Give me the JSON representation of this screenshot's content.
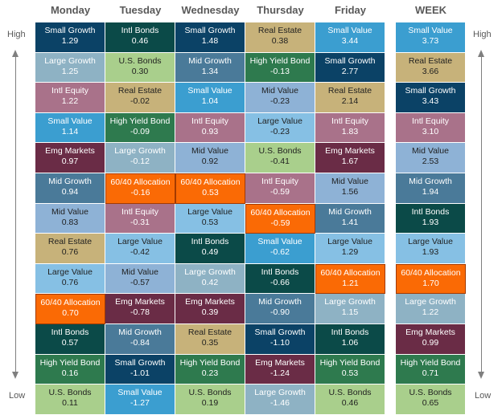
{
  "chart_data": {
    "type": "table",
    "axis_labels": {
      "top": "High",
      "bottom": "Low"
    },
    "colors": {
      "Small Growth": "#0b4266",
      "Intl Bonds": "#0b4a48",
      "Real Estate": "#c7b27a",
      "Small Value": "#3b9ed0",
      "Large Growth": "#8eb2c4",
      "U.S. Bonds": "#a9cf8c",
      "Mid Growth": "#4a7a99",
      "High Yield Bond": "#2e7a4e",
      "Intl Equity": "#a9728a",
      "Mid Value": "#8eb2d6",
      "Emg Markets": "#6a2c46",
      "Large Value": "#86c0e4",
      "60/40 Allocation": "#fa6a05"
    },
    "columns": [
      {
        "header": "Monday",
        "rows": [
          {
            "name": "Small Growth",
            "value": "1.29"
          },
          {
            "name": "Large Growth",
            "value": "1.25"
          },
          {
            "name": "Intl Equity",
            "value": "1.22"
          },
          {
            "name": "Small Value",
            "value": "1.14"
          },
          {
            "name": "Emg Markets",
            "value": "0.97"
          },
          {
            "name": "Mid Growth",
            "value": "0.94"
          },
          {
            "name": "Mid Value",
            "value": "0.83"
          },
          {
            "name": "Real Estate",
            "value": "0.76"
          },
          {
            "name": "Large Value",
            "value": "0.76"
          },
          {
            "name": "60/40 Allocation",
            "value": "0.70"
          },
          {
            "name": "Intl Bonds",
            "value": "0.57"
          },
          {
            "name": "High Yield Bond",
            "value": "0.16"
          },
          {
            "name": "U.S. Bonds",
            "value": "0.11"
          }
        ]
      },
      {
        "header": "Tuesday",
        "rows": [
          {
            "name": "Intl Bonds",
            "value": "0.46"
          },
          {
            "name": "U.S. Bonds",
            "value": "0.30"
          },
          {
            "name": "Real Estate",
            "value": "-0.02"
          },
          {
            "name": "High Yield Bond",
            "value": "-0.09"
          },
          {
            "name": "Large Growth",
            "value": "-0.12"
          },
          {
            "name": "60/40 Allocation",
            "value": "-0.16"
          },
          {
            "name": "Intl Equity",
            "value": "-0.31"
          },
          {
            "name": "Large Value",
            "value": "-0.42"
          },
          {
            "name": "Mid Value",
            "value": "-0.57"
          },
          {
            "name": "Emg Markets",
            "value": "-0.78"
          },
          {
            "name": "Mid Growth",
            "value": "-0.84"
          },
          {
            "name": "Small Growth",
            "value": "-1.01"
          },
          {
            "name": "Small Value",
            "value": "-1.27"
          }
        ]
      },
      {
        "header": "Wednesday",
        "rows": [
          {
            "name": "Small Growth",
            "value": "1.48"
          },
          {
            "name": "Mid Growth",
            "value": "1.34"
          },
          {
            "name": "Small Value",
            "value": "1.04"
          },
          {
            "name": "Intl Equity",
            "value": "0.93"
          },
          {
            "name": "Mid Value",
            "value": "0.92"
          },
          {
            "name": "60/40 Allocation",
            "value": "0.53"
          },
          {
            "name": "Large Value",
            "value": "0.53"
          },
          {
            "name": "Intl Bonds",
            "value": "0.49"
          },
          {
            "name": "Large Growth",
            "value": "0.42"
          },
          {
            "name": "Emg Markets",
            "value": "0.39"
          },
          {
            "name": "Real Estate",
            "value": "0.35"
          },
          {
            "name": "High Yield Bond",
            "value": "0.23"
          },
          {
            "name": "U.S. Bonds",
            "value": "0.19"
          }
        ]
      },
      {
        "header": "Thursday",
        "rows": [
          {
            "name": "Real Estate",
            "value": "0.38"
          },
          {
            "name": "High Yield Bond",
            "value": "-0.13"
          },
          {
            "name": "Mid Value",
            "value": "-0.23"
          },
          {
            "name": "Large Value",
            "value": "-0.23"
          },
          {
            "name": "U.S. Bonds",
            "value": "-0.41"
          },
          {
            "name": "Intl Equity",
            "value": "-0.59"
          },
          {
            "name": "60/40 Allocation",
            "value": "-0.59"
          },
          {
            "name": "Small Value",
            "value": "-0.62"
          },
          {
            "name": "Intl Bonds",
            "value": "-0.66"
          },
          {
            "name": "Mid Growth",
            "value": "-0.90"
          },
          {
            "name": "Small Growth",
            "value": "-1.10"
          },
          {
            "name": "Emg Markets",
            "value": "-1.24"
          },
          {
            "name": "Large Growth",
            "value": "-1.46"
          }
        ]
      },
      {
        "header": "Friday",
        "rows": [
          {
            "name": "Small Value",
            "value": "3.44"
          },
          {
            "name": "Small Growth",
            "value": "2.77"
          },
          {
            "name": "Real Estate",
            "value": "2.14"
          },
          {
            "name": "Intl Equity",
            "value": "1.83"
          },
          {
            "name": "Emg Markets",
            "value": "1.67"
          },
          {
            "name": "Mid Value",
            "value": "1.56"
          },
          {
            "name": "Mid Growth",
            "value": "1.41"
          },
          {
            "name": "Large Value",
            "value": "1.29"
          },
          {
            "name": "60/40 Allocation",
            "value": "1.21"
          },
          {
            "name": "Large Growth",
            "value": "1.15"
          },
          {
            "name": "Intl Bonds",
            "value": "1.06"
          },
          {
            "name": "High Yield Bond",
            "value": "0.53"
          },
          {
            "name": "U.S. Bonds",
            "value": "0.46"
          }
        ]
      },
      {
        "header": "WEEK",
        "rows": [
          {
            "name": "Small Value",
            "value": "3.73"
          },
          {
            "name": "Real Estate",
            "value": "3.66"
          },
          {
            "name": "Small Growth",
            "value": "3.43"
          },
          {
            "name": "Intl Equity",
            "value": "3.10"
          },
          {
            "name": "Mid Value",
            "value": "2.53"
          },
          {
            "name": "Mid Growth",
            "value": "1.94"
          },
          {
            "name": "Intl Bonds",
            "value": "1.93"
          },
          {
            "name": "Large Value",
            "value": "1.93"
          },
          {
            "name": "60/40 Allocation",
            "value": "1.70"
          },
          {
            "name": "Large Growth",
            "value": "1.22"
          },
          {
            "name": "Emg Markets",
            "value": "0.99"
          },
          {
            "name": "High Yield Bond",
            "value": "0.71"
          },
          {
            "name": "U.S. Bonds",
            "value": "0.65"
          }
        ]
      }
    ]
  }
}
